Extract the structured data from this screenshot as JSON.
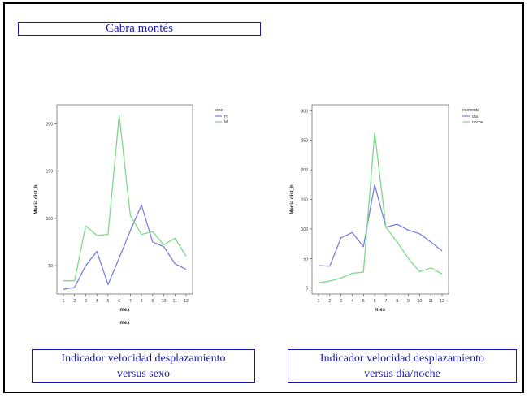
{
  "slide_title": "Cabra montés",
  "captions": {
    "left_line1": "Indicador velocidad desplazamiento",
    "left_line2": "versus sexo",
    "right_line1": "Indicador velocidad desplazamiento",
    "right_line2": "versus día/noche"
  },
  "colors": {
    "series_blue": "#7b7fe0",
    "series_green": "#7dd98a",
    "caption_text": "#1a1aa8"
  },
  "chart_data": [
    {
      "type": "line",
      "xlabel": "mes",
      "ylabel": "Media dist_h",
      "extra_label": "mes",
      "x": [
        1,
        2,
        3,
        4,
        5,
        6,
        7,
        8,
        9,
        10,
        11,
        12
      ],
      "ylim": [
        20,
        220
      ],
      "yticks": [
        50,
        100,
        150,
        200
      ],
      "legend_title": "sexo",
      "series": [
        {
          "name": "H",
          "color": "#7b7fe0",
          "values": [
            25,
            27,
            50,
            65,
            30,
            58,
            87,
            114,
            75,
            70,
            52,
            46
          ]
        },
        {
          "name": "M",
          "color": "#7dd98a",
          "values": [
            34,
            34,
            92,
            82,
            83,
            209,
            103,
            83,
            86,
            72,
            79,
            60
          ]
        }
      ],
      "legend_position": "top-right",
      "grid": false
    },
    {
      "type": "line",
      "xlabel": "mes",
      "ylabel": "Media dist_h",
      "x": [
        1,
        2,
        3,
        4,
        5,
        6,
        7,
        8,
        9,
        10,
        11,
        12
      ],
      "ylim": [
        -10,
        310
      ],
      "yticks": [
        0,
        50,
        100,
        150,
        200,
        250,
        300
      ],
      "legend_title": "momento",
      "series": [
        {
          "name": "día",
          "color": "#7b7fe0",
          "values": [
            38,
            37,
            85,
            94,
            70,
            175,
            103,
            108,
            98,
            92,
            78,
            63
          ]
        },
        {
          "name": "noche",
          "color": "#7dd98a",
          "values": [
            9,
            12,
            17,
            25,
            27,
            263,
            103,
            78,
            50,
            28,
            34,
            24
          ]
        }
      ],
      "legend_position": "top-right",
      "grid": false
    }
  ]
}
